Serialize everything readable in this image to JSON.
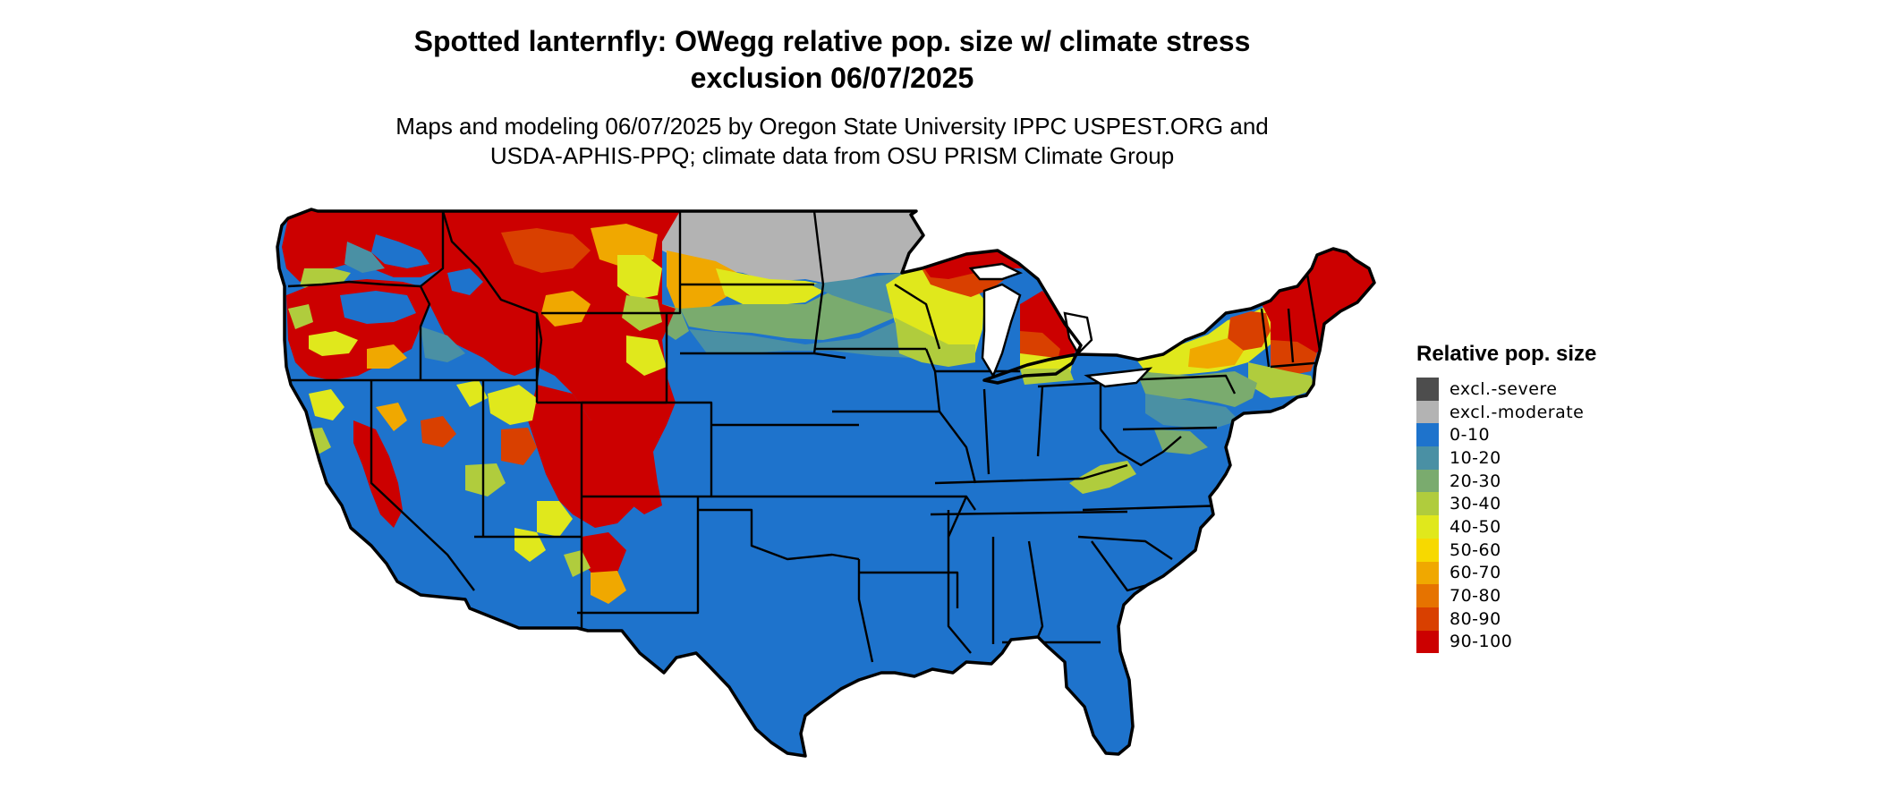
{
  "title": {
    "line1": "Spotted lanternfly: OWegg relative pop. size w/ climate stress",
    "line2": "exclusion 06/07/2025"
  },
  "subtitle": {
    "line1": "Maps and modeling 06/07/2025 by Oregon State University IPPC USPEST.ORG and",
    "line2": "USDA-APHIS-PPQ; climate data from OSU PRISM Climate Group"
  },
  "legend": {
    "title": "Relative pop. size",
    "items": [
      {
        "label": "excl.-severe",
        "color": "#4d4d4d"
      },
      {
        "label": "excl.-moderate",
        "color": "#b3b3b3"
      },
      {
        "label": "0-10",
        "color": "#1e73cc"
      },
      {
        "label": "10-20",
        "color": "#4a90a4"
      },
      {
        "label": "20-30",
        "color": "#7aab6e"
      },
      {
        "label": "30-40",
        "color": "#b0cc3d"
      },
      {
        "label": "40-50",
        "color": "#e0e81c"
      },
      {
        "label": "50-60",
        "color": "#f7d900"
      },
      {
        "label": "60-70",
        "color": "#f0a800"
      },
      {
        "label": "70-80",
        "color": "#e67300"
      },
      {
        "label": "80-90",
        "color": "#d94000"
      },
      {
        "label": "90-100",
        "color": "#cc0000"
      }
    ]
  },
  "map": {
    "region": "contiguous-united-states",
    "boundary_color": "#000000",
    "zones": {
      "low": "#1e73cc",
      "low_mid": "#4a90a4",
      "mid": "#7aab6e",
      "mid_high": "#b0cc3d",
      "yellow": "#e0e81c",
      "orange": "#f0a800",
      "high": "#d94000",
      "max": "#cc0000",
      "excluded": "#b3b3b3"
    }
  }
}
